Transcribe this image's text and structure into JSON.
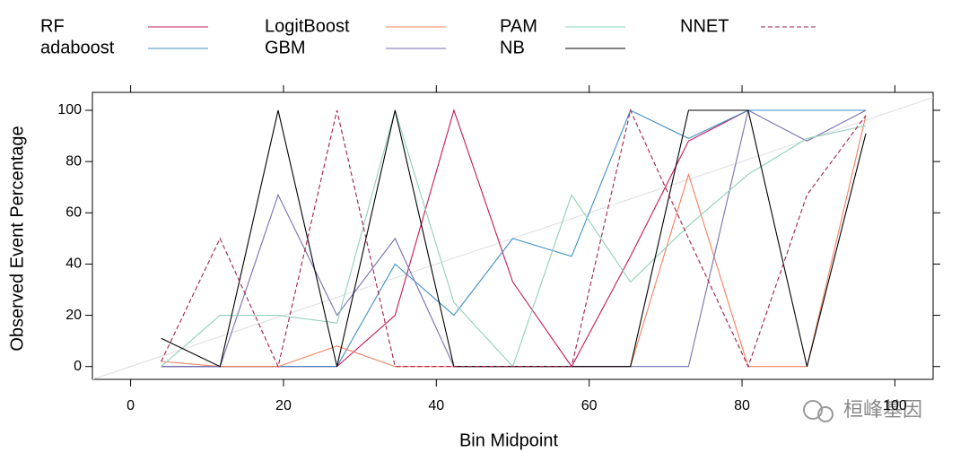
{
  "chart_data": {
    "type": "line",
    "xlabel": "Bin Midpoint",
    "ylabel": "Observed Event Percentage",
    "x": [
      4,
      11.7,
      19.3,
      27,
      34.6,
      42.3,
      50,
      57.7,
      65.4,
      73,
      80.8,
      88.5,
      96.2
    ],
    "series": [
      {
        "name": "RF",
        "color": "#c2185b",
        "values": [
          0,
          0,
          0,
          0,
          20,
          100,
          33,
          0,
          43,
          88,
          100,
          100,
          100
        ]
      },
      {
        "name": "adaboost",
        "color": "#3f8fc4",
        "values": [
          0,
          0,
          0,
          0,
          40,
          20,
          50,
          43,
          100,
          89,
          100,
          100,
          100
        ]
      },
      {
        "name": "LogitBoost",
        "color": "#f4805f",
        "values": [
          2,
          0,
          0,
          8,
          0,
          0,
          0,
          0,
          0,
          75,
          0,
          0,
          98
        ]
      },
      {
        "name": "GBM",
        "color": "#7570b3",
        "values": [
          0,
          0,
          67,
          20,
          50,
          0,
          0,
          0,
          0,
          0,
          100,
          88,
          100
        ]
      },
      {
        "name": "PAM",
        "color": "#8fd1b5",
        "values": [
          0,
          20,
          20,
          17,
          100,
          25,
          0,
          67,
          33,
          55,
          75,
          89,
          94
        ]
      },
      {
        "name": "NB",
        "color": "#000000",
        "values": [
          11,
          0,
          100,
          0,
          100,
          0,
          0,
          0,
          0,
          100,
          100,
          0,
          91
        ]
      },
      {
        "name": "NNET",
        "color": "#a0204a",
        "dashed": true,
        "values": [
          2,
          50,
          0,
          100,
          0,
          0,
          0,
          0,
          100,
          50,
          0,
          67,
          98
        ]
      }
    ],
    "xlim": [
      -5,
      105
    ],
    "ylim": [
      -5,
      107
    ],
    "xticks": [
      0,
      20,
      40,
      60,
      80,
      100
    ],
    "yticks": [
      0,
      20,
      40,
      60,
      80,
      100
    ],
    "reference_line": true,
    "watermark": "桓峰基因"
  }
}
